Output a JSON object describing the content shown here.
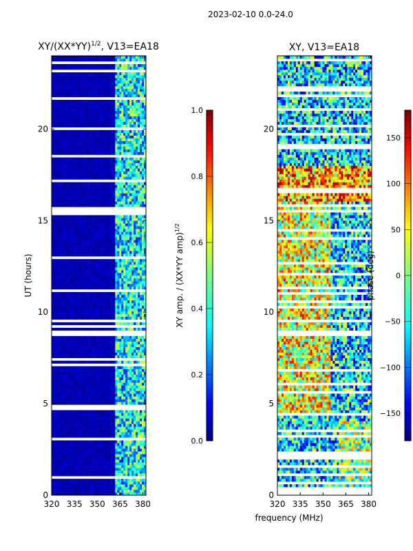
{
  "figure_title": "2023-02-10 0.0-24.0",
  "shared_xlabel": "frequency (MHz)",
  "chart_data": [
    {
      "type": "heatmap",
      "title": "XY/(XX*YY)",
      "title_suffix": ", V13=EA18",
      "title_sup": "1/2",
      "xlabel": "",
      "ylabel": "UT (hours)",
      "xlim": [
        320,
        382
      ],
      "ylim": [
        0,
        24
      ],
      "xticks": [
        320,
        335,
        350,
        365,
        380
      ],
      "yticks": [
        0,
        5,
        10,
        15,
        20
      ],
      "colorbar": {
        "label": "XY amp. / (XX*YY amp)",
        "label_sup": "1/2",
        "range": [
          0.0,
          1.0
        ],
        "ticks": [
          "0.0",
          "0.2",
          "0.4",
          "0.6",
          "0.8",
          "1.0"
        ]
      }
    },
    {
      "type": "heatmap",
      "title": "XY, V13=EA18",
      "xlabel": "frequency (MHz)",
      "ylabel": "",
      "xlim": [
        320,
        382
      ],
      "ylim": [
        0,
        24
      ],
      "xticks": [
        320,
        335,
        350,
        365,
        380
      ],
      "yticks": [
        0,
        5,
        10,
        15,
        20
      ],
      "colorbar": {
        "label": "phase (deg)",
        "range": [
          -180,
          180
        ],
        "ticks": [
          "−150",
          "−100",
          "−50",
          "0",
          "50",
          "100",
          "150"
        ]
      }
    }
  ],
  "colors": {
    "jet_dark_blue": "#00007f",
    "jet_blue": "#0000ff",
    "jet_cyan": "#00ffff",
    "jet_yellow": "#ffff00",
    "jet_red": "#ff0000",
    "jet_dark_red": "#7f0000"
  }
}
